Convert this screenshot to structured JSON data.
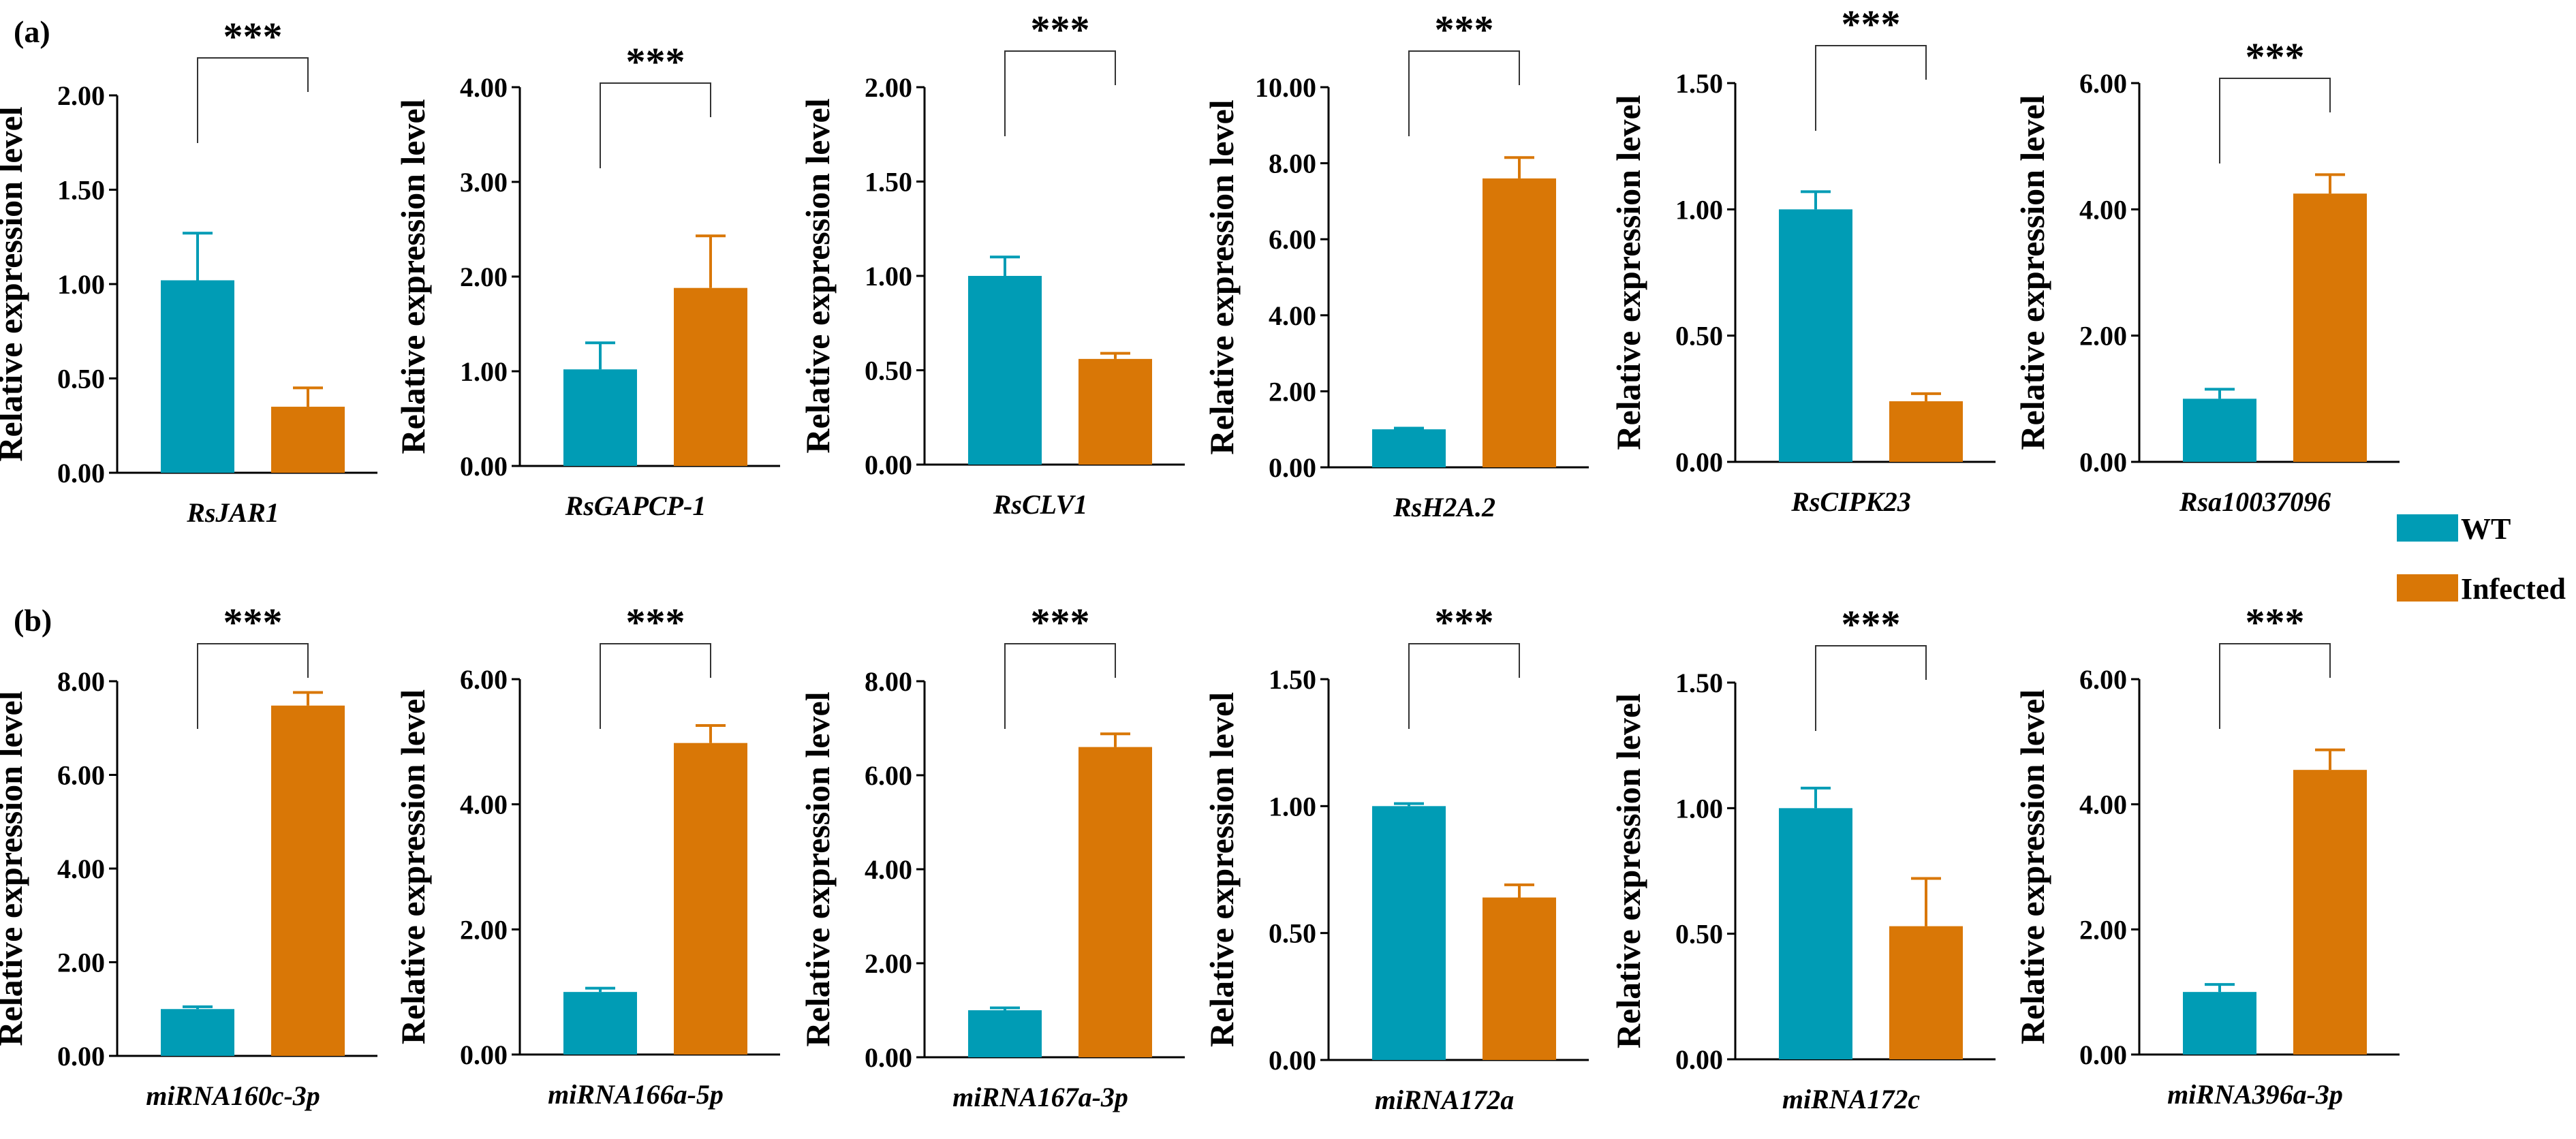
{
  "colors": {
    "wt": "#009cb5",
    "infected": "#d97706",
    "axis": "#000000",
    "bracket": "#333333"
  },
  "legend": {
    "items": [
      {
        "name": "WT",
        "color": "#009cb5"
      },
      {
        "name": "Infected",
        "color": "#d97706"
      }
    ]
  },
  "chart_data": [
    {
      "type": "bar",
      "panel": "(a)",
      "gene": "RsJAR1",
      "ylabel": "Relative expression level",
      "ylim": [
        0,
        2.0
      ],
      "ticks": [
        "0.00",
        "0.50",
        "1.00",
        "1.50",
        "2.00"
      ],
      "series": [
        {
          "name": "WT",
          "values": [
            1.02
          ],
          "error": [
            0.25
          ]
        },
        {
          "name": "Infected",
          "values": [
            0.35
          ],
          "error": [
            0.1
          ]
        }
      ],
      "significance": "***"
    },
    {
      "type": "bar",
      "gene": "RsGAPCP-1",
      "ylabel": "Relative expression level",
      "ylim": [
        0,
        4.0
      ],
      "ticks": [
        "0.00",
        "1.00",
        "2.00",
        "3.00",
        "4.00"
      ],
      "series": [
        {
          "name": "WT",
          "values": [
            1.02
          ],
          "error": [
            0.28
          ]
        },
        {
          "name": "Infected",
          "values": [
            1.88
          ],
          "error": [
            0.55
          ]
        }
      ],
      "significance": "***"
    },
    {
      "type": "bar",
      "gene": "RsCLV1",
      "ylabel": "Relative expression level",
      "ylim": [
        0,
        2.0
      ],
      "ticks": [
        "0.00",
        "0.50",
        "1.00",
        "1.50",
        "2.00"
      ],
      "series": [
        {
          "name": "WT",
          "values": [
            1.0
          ],
          "error": [
            0.1
          ]
        },
        {
          "name": "Infected",
          "values": [
            0.56
          ],
          "error": [
            0.03
          ]
        }
      ],
      "significance": "***"
    },
    {
      "type": "bar",
      "gene": "RsH2A.2",
      "ylabel": "Relative expression level",
      "ylim": [
        0,
        10.0
      ],
      "ticks": [
        "0.00",
        "2.00",
        "4.00",
        "6.00",
        "8.00",
        "10.00"
      ],
      "series": [
        {
          "name": "WT",
          "values": [
            1.0
          ],
          "error": [
            0.03
          ]
        },
        {
          "name": "Infected",
          "values": [
            7.6
          ],
          "error": [
            0.55
          ]
        }
      ],
      "significance": "***"
    },
    {
      "type": "bar",
      "gene": "RsCIPK23",
      "ylabel": "Relative expression level",
      "ylim": [
        0,
        1.5
      ],
      "ticks": [
        "0.00",
        "0.50",
        "1.00",
        "1.50"
      ],
      "series": [
        {
          "name": "WT",
          "values": [
            1.0
          ],
          "error": [
            0.07
          ]
        },
        {
          "name": "Infected",
          "values": [
            0.24
          ],
          "error": [
            0.03
          ]
        }
      ],
      "significance": "***"
    },
    {
      "type": "bar",
      "gene": "Rsa10037096",
      "ylabel": "Relative expression level",
      "ylim": [
        0,
        6.0
      ],
      "ticks": [
        "0.00",
        "2.00",
        "4.00",
        "6.00"
      ],
      "series": [
        {
          "name": "WT",
          "values": [
            1.0
          ],
          "error": [
            0.15
          ]
        },
        {
          "name": "Infected",
          "values": [
            4.25
          ],
          "error": [
            0.3
          ]
        }
      ],
      "significance": "***"
    },
    {
      "type": "bar",
      "panel": "(b)",
      "gene": "miRNA160c-3p",
      "ylabel": "Relative expression level",
      "ylim": [
        0,
        8.0
      ],
      "ticks": [
        "0.00",
        "2.00",
        "4.00",
        "6.00",
        "8.00"
      ],
      "series": [
        {
          "name": "WT",
          "values": [
            1.0
          ],
          "error": [
            0.05
          ]
        },
        {
          "name": "Infected",
          "values": [
            7.48
          ],
          "error": [
            0.28
          ]
        }
      ],
      "significance": "***"
    },
    {
      "type": "bar",
      "gene": "miRNA166a-5p",
      "ylabel": "Relative expression level",
      "ylim": [
        0,
        6.0
      ],
      "ticks": [
        "0.00",
        "2.00",
        "4.00",
        "6.00"
      ],
      "series": [
        {
          "name": "WT",
          "values": [
            1.0
          ],
          "error": [
            0.06
          ]
        },
        {
          "name": "Infected",
          "values": [
            4.98
          ],
          "error": [
            0.28
          ]
        }
      ],
      "significance": "***"
    },
    {
      "type": "bar",
      "gene": "miRNA167a-3p",
      "ylabel": "Relative expression level",
      "ylim": [
        0,
        8.0
      ],
      "ticks": [
        "0.00",
        "2.00",
        "4.00",
        "6.00",
        "8.00"
      ],
      "series": [
        {
          "name": "WT",
          "values": [
            1.0
          ],
          "error": [
            0.05
          ]
        },
        {
          "name": "Infected",
          "values": [
            6.6
          ],
          "error": [
            0.28
          ]
        }
      ],
      "significance": "***"
    },
    {
      "type": "bar",
      "gene": "miRNA172a",
      "ylabel": "Relative expression level",
      "ylim": [
        0,
        1.5
      ],
      "ticks": [
        "0.00",
        "0.50",
        "1.00",
        "1.50"
      ],
      "series": [
        {
          "name": "WT",
          "values": [
            1.0
          ],
          "error": [
            0.01
          ]
        },
        {
          "name": "Infected",
          "values": [
            0.64
          ],
          "error": [
            0.05
          ]
        }
      ],
      "significance": "***"
    },
    {
      "type": "bar",
      "gene": "miRNA172c",
      "ylabel": "Relative expression level",
      "ylim": [
        0,
        1.5
      ],
      "ticks": [
        "0.00",
        "0.50",
        "1.00",
        "1.50"
      ],
      "series": [
        {
          "name": "WT",
          "values": [
            1.0
          ],
          "error": [
            0.08
          ]
        },
        {
          "name": "Infected",
          "values": [
            0.53
          ],
          "error": [
            0.19
          ]
        }
      ],
      "significance": "***"
    },
    {
      "type": "bar",
      "gene": "miRNA396a-3p",
      "ylabel": "Relative expression level",
      "ylim": [
        0,
        6.0
      ],
      "ticks": [
        "0.00",
        "2.00",
        "4.00",
        "6.00"
      ],
      "series": [
        {
          "name": "WT",
          "values": [
            1.0
          ],
          "error": [
            0.12
          ]
        },
        {
          "name": "Infected",
          "values": [
            4.55
          ],
          "error": [
            0.32
          ]
        }
      ],
      "significance": "***"
    }
  ]
}
